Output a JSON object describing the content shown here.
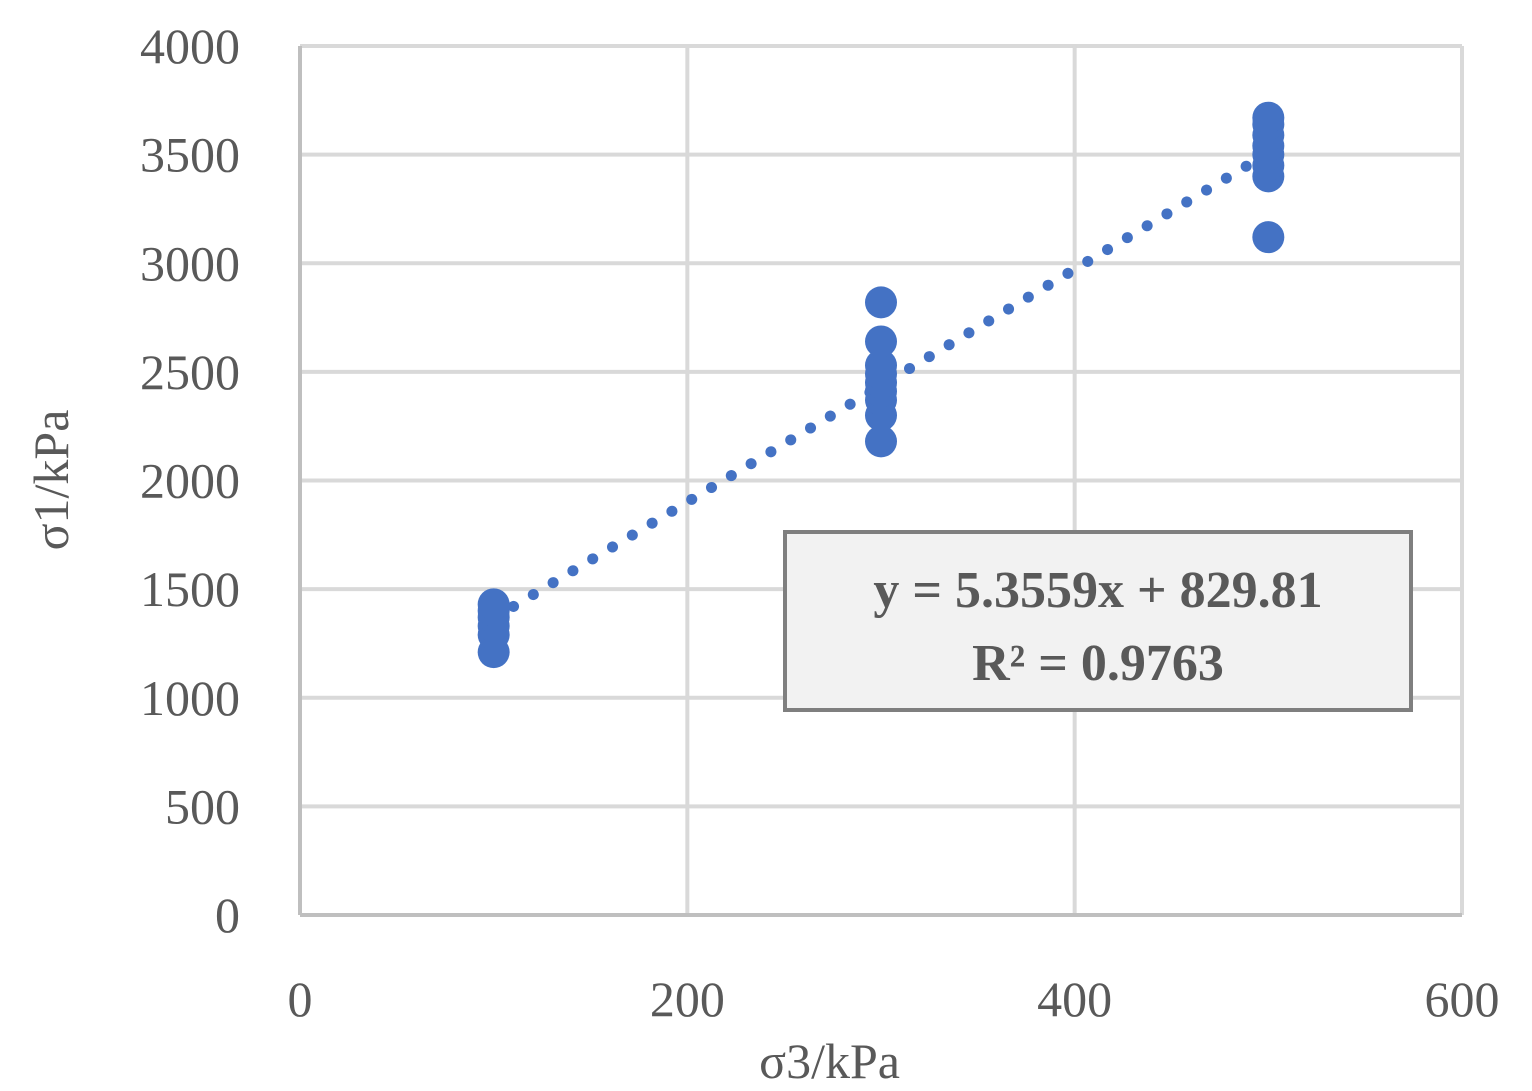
{
  "chart_data": {
    "type": "scatter",
    "xlabel": "σ3/kPa",
    "ylabel": "σ1/kPa",
    "xlim": [
      0,
      600
    ],
    "ylim": [
      0,
      4000
    ],
    "x_ticks": [
      "0",
      "200",
      "400",
      "600"
    ],
    "y_ticks": [
      "0",
      "500",
      "1000",
      "1500",
      "2000",
      "2500",
      "3000",
      "3500",
      "4000"
    ],
    "grid": true,
    "marker_color": "#4472C4",
    "grid_color": "#D9D9D9",
    "axis_color": "#BFBFBF",
    "series": [
      {
        "points": [
          {
            "x": 100,
            "y": 1210
          },
          {
            "x": 100,
            "y": 1290
          },
          {
            "x": 100,
            "y": 1330
          },
          {
            "x": 100,
            "y": 1370
          },
          {
            "x": 100,
            "y": 1400
          },
          {
            "x": 100,
            "y": 1430
          },
          {
            "x": 300,
            "y": 2180
          },
          {
            "x": 300,
            "y": 2300
          },
          {
            "x": 300,
            "y": 2370
          },
          {
            "x": 300,
            "y": 2410
          },
          {
            "x": 300,
            "y": 2450
          },
          {
            "x": 300,
            "y": 2490
          },
          {
            "x": 300,
            "y": 2530
          },
          {
            "x": 300,
            "y": 2640
          },
          {
            "x": 300,
            "y": 2820
          },
          {
            "x": 500,
            "y": 3120
          },
          {
            "x": 500,
            "y": 3400
          },
          {
            "x": 500,
            "y": 3450
          },
          {
            "x": 500,
            "y": 3500
          },
          {
            "x": 500,
            "y": 3540
          },
          {
            "x": 500,
            "y": 3590
          },
          {
            "x": 500,
            "y": 3640
          },
          {
            "x": 500,
            "y": 3670
          }
        ]
      }
    ],
    "trendline": {
      "type": "linear",
      "slope": 5.3559,
      "intercept": 829.81,
      "x_range": [
        100,
        500
      ],
      "style": "dotted"
    },
    "annotations": {
      "equation": "y = 5.3559x + 829.81",
      "r_squared": "R² = 0.9763"
    }
  }
}
